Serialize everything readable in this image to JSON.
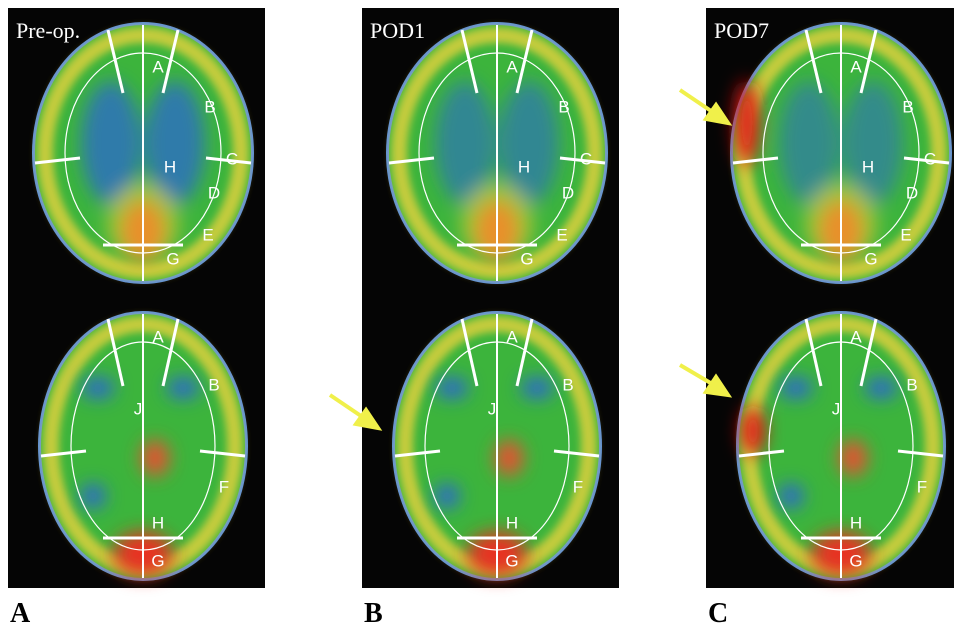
{
  "panels": [
    {
      "label": "A",
      "caption": "Pre-op.",
      "slices": [
        {
          "regions": [
            "A",
            "B",
            "C",
            "D",
            "E",
            "G",
            "H"
          ]
        },
        {
          "regions": [
            "A",
            "B",
            "J",
            "F",
            "H",
            "G"
          ]
        }
      ]
    },
    {
      "label": "B",
      "caption": "POD1",
      "slices": [
        {
          "regions": [
            "A",
            "B",
            "C",
            "D",
            "E",
            "G",
            "H"
          ]
        },
        {
          "regions": [
            "A",
            "B",
            "J",
            "F",
            "H",
            "G"
          ]
        }
      ]
    },
    {
      "label": "C",
      "caption": "POD7",
      "slices": [
        {
          "regions": [
            "A",
            "B",
            "C",
            "D",
            "E",
            "G",
            "H"
          ]
        },
        {
          "regions": [
            "A",
            "B",
            "J",
            "F",
            "H",
            "G"
          ]
        }
      ]
    }
  ]
}
